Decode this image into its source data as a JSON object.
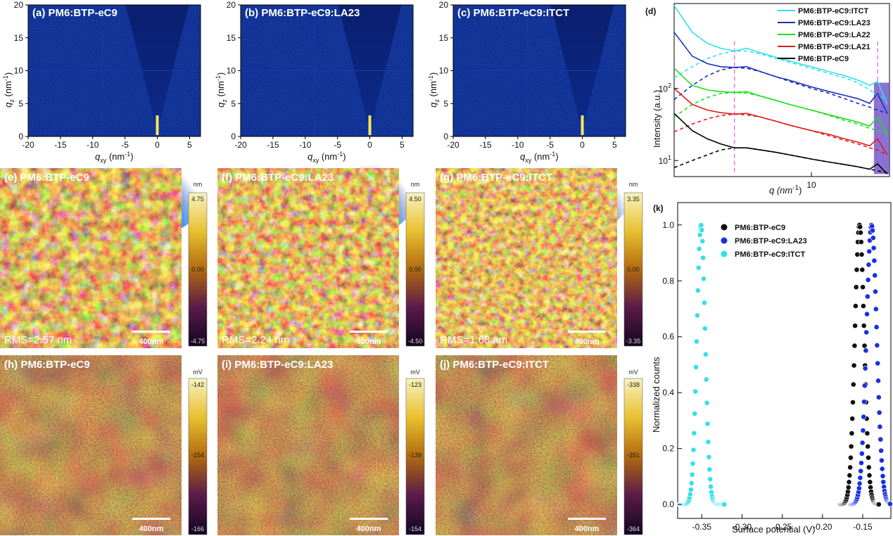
{
  "giwaxs": {
    "panels": [
      {
        "title": "(a) PM6:BTP-eC9"
      },
      {
        "title": "(b) PM6:BTP-eC9:LA23"
      },
      {
        "title": "(c) PM6:BTP-eC9:ITCT"
      }
    ],
    "x_ticks": [
      "-20",
      "-15",
      "-10",
      "-5",
      "0",
      "5"
    ],
    "y_ticks": [
      "0",
      "5",
      "10",
      "15",
      "20"
    ],
    "xlabel_main": "q",
    "xlabel_sub": "xy",
    "xlabel_unit": " (nm",
    "xlabel_sup": "-1",
    "xlabel_end": ")",
    "ylabel_main": "q",
    "ylabel_sub": "z",
    "ylabel_unit": " (nm",
    "ylabel_sup": "-1",
    "ylabel_end": ")",
    "colors": {
      "background": "#0a2a8f",
      "ring": "#39b6ff",
      "beam": "#ffe45c"
    }
  },
  "afm": {
    "panels": [
      {
        "title": "(e) PM6:BTP-eC9",
        "rms": "RMS=2.57 nm",
        "cb_top": "4.75",
        "cb_mid": "0.00",
        "cb_bot": "-4.75"
      },
      {
        "title": "(f) PM6:BTP-eC9:LA23",
        "rms": "RMS=2.24 nm",
        "cb_top": "4.50",
        "cb_mid": "0.00",
        "cb_bot": "-4.50"
      },
      {
        "title": "(g) PM6:BTP-eC9:ITCT",
        "rms": "RMS=1.68 nm",
        "cb_top": "3.35",
        "cb_mid": "0.00",
        "cb_bot": "-3.35"
      }
    ],
    "unit": "nm",
    "scalebar": "400nm",
    "colors": {
      "dark": "#2a0a3a",
      "mid": "#a05a10",
      "light": "#f4efb2"
    }
  },
  "kpfm": {
    "panels": [
      {
        "title": "(h) PM6:BTP-eC9",
        "cb_top": "-142",
        "cb_mid": "-154",
        "cb_bot": "-166"
      },
      {
        "title": "(i) PM6:BTP-eC9:LA23",
        "cb_top": "-123",
        "cb_mid": "-139",
        "cb_bot": "-154"
      },
      {
        "title": "(j) PM6:BTP-eC9:ITCT",
        "cb_top": "-338",
        "cb_mid": "-351",
        "cb_bot": "-364"
      }
    ],
    "unit": "mV",
    "scalebar": "400nm"
  },
  "chart_data": [
    {
      "id": "d",
      "label": "(d)",
      "type": "line",
      "title": "",
      "xscale": "log",
      "yscale": "log",
      "xlabel": "q (nm",
      "xlabel_sup": "-1",
      "xlabel_end": ")",
      "ylabel": "Intensity (a.u.)",
      "x_tick_labels": [
        "10"
      ],
      "y_tick_labels": [
        "10",
        "10"
      ],
      "y_tick_sups": [
        "1",
        "2"
      ],
      "xlim": [
        2.5,
        22
      ],
      "ylim": [
        6,
        1500
      ],
      "vertical_markers": [
        4.6,
        19.5
      ],
      "highlight_band": [
        18.8,
        22
      ],
      "legend_position": "top-right",
      "series": [
        {
          "name": "PM6:BTP-eC9:ITCT",
          "color": "#33e0e8",
          "x": [
            2.5,
            3.0,
            3.5,
            4.0,
            4.6,
            5.2,
            6.0,
            7.0,
            8.0,
            10.0,
            12.0,
            14.0,
            16.0,
            18.0,
            19.5,
            21.5
          ],
          "y": [
            1400,
            600,
            420,
            360,
            330,
            360,
            310,
            270,
            240,
            200,
            170,
            150,
            130,
            110,
            125,
            60
          ],
          "fit": [
            140,
            200,
            260,
            300,
            330,
            330,
            300,
            260,
            230,
            190,
            160,
            140,
            120,
            95,
            80,
            70
          ]
        },
        {
          "name": "PM6:BTP-eC9:LA23",
          "color": "#1a2fb8",
          "x": [
            2.5,
            3.0,
            3.5,
            4.0,
            4.6,
            5.2,
            6.0,
            7.0,
            8.0,
            10.0,
            12.0,
            14.0,
            16.0,
            18.0,
            19.5,
            21.5
          ],
          "y": [
            600,
            280,
            220,
            200,
            195,
            200,
            170,
            145,
            130,
            105,
            90,
            80,
            72,
            62,
            85,
            45
          ],
          "fit": [
            70,
            110,
            150,
            180,
            195,
            190,
            170,
            145,
            125,
            100,
            85,
            72,
            62,
            55,
            50,
            45
          ]
        },
        {
          "name": "PM6:BTP-eC9:LA22",
          "color": "#1ee01e",
          "x": [
            2.5,
            3.0,
            3.5,
            4.0,
            4.6,
            5.2,
            6.0,
            7.0,
            8.0,
            10.0,
            12.0,
            14.0,
            16.0,
            18.0,
            19.5,
            21.5
          ],
          "y": [
            190,
            110,
            95,
            90,
            88,
            90,
            78,
            68,
            60,
            50,
            43,
            38,
            34,
            30,
            40,
            22
          ],
          "fit": [
            40,
            60,
            75,
            85,
            88,
            86,
            78,
            68,
            60,
            50,
            42,
            36,
            32,
            28,
            26,
            24
          ]
        },
        {
          "name": "PM6:BTP-eC9:LA21",
          "color": "#e01a1a",
          "x": [
            2.5,
            3.0,
            3.5,
            4.0,
            4.6,
            5.2,
            6.0,
            7.0,
            8.0,
            10.0,
            12.0,
            14.0,
            16.0,
            18.0,
            19.5,
            21.5
          ],
          "y": [
            100,
            60,
            50,
            46,
            44,
            45,
            40,
            35,
            31,
            26,
            23,
            20,
            18,
            16,
            20,
            12
          ],
          "fit": [
            25,
            32,
            38,
            42,
            44,
            43,
            40,
            35,
            31,
            26,
            22,
            19,
            17,
            15,
            14,
            12
          ]
        },
        {
          "name": "PM6:BTP-eC9",
          "color": "#000000",
          "x": [
            2.5,
            3.0,
            3.5,
            4.0,
            4.6,
            5.2,
            6.0,
            7.0,
            8.0,
            10.0,
            12.0,
            14.0,
            16.0,
            18.0,
            19.5,
            21.5
          ],
          "y": [
            45,
            26,
            20,
            17,
            15,
            15,
            14,
            13,
            12,
            10.5,
            9.5,
            8.8,
            8.2,
            7.6,
            9.0,
            6.5
          ],
          "fit": [
            8,
            10,
            12,
            14,
            15,
            15,
            14,
            13,
            12,
            10.5,
            9.5,
            8.8,
            8.2,
            7.6,
            7.2,
            6.8
          ]
        }
      ]
    },
    {
      "id": "k",
      "label": "(k)",
      "type": "scatter",
      "title": "",
      "xlabel": "Surface potential (V)",
      "ylabel": "Normalized counts",
      "xlim": [
        -0.38,
        -0.115
      ],
      "ylim": [
        -0.05,
        1.08
      ],
      "x_ticks": [
        -0.35,
        -0.3,
        -0.25,
        -0.2,
        -0.15
      ],
      "x_tick_labels": [
        "-0.35",
        "-0.30",
        "-0.25",
        "-0.20",
        "-0.15"
      ],
      "y_ticks": [
        0.0,
        0.2,
        0.4,
        0.6,
        0.8,
        1.0
      ],
      "y_tick_labels": [
        "0.0",
        "0.2",
        "0.4",
        "0.6",
        "0.8",
        "1.0"
      ],
      "legend_position": "top-left",
      "series": [
        {
          "name": "PM6:BTP-eC9",
          "color": "#111111",
          "center": -0.154,
          "sigma": 0.0058,
          "xmin": -0.178,
          "xmax": -0.13
        },
        {
          "name": "PM6:BTP-eC9:LA23",
          "color": "#1a2fe0",
          "center": -0.139,
          "sigma": 0.0065,
          "xmin": -0.165,
          "xmax": -0.116
        },
        {
          "name": "PM6:BTP-eC9:ITCT",
          "color": "#33e0e8",
          "center": -0.351,
          "sigma": 0.0052,
          "xmin": -0.378,
          "xmax": -0.322
        }
      ]
    }
  ]
}
